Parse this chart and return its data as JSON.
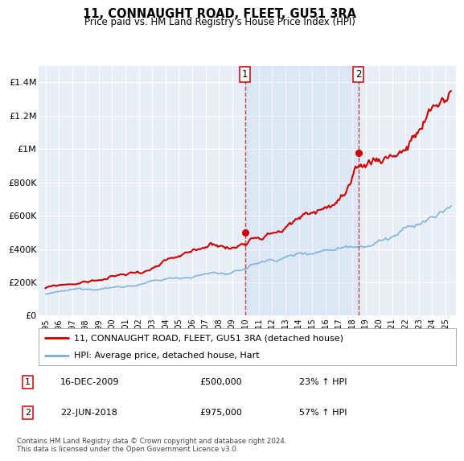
{
  "title": "11, CONNAUGHT ROAD, FLEET, GU51 3RA",
  "subtitle": "Price paid vs. HM Land Registry's House Price Index (HPI)",
  "background_color": "#ffffff",
  "plot_bg_color": "#e8eef8",
  "grid_color": "#ffffff",
  "hpi_color": "#7aaed6",
  "price_color": "#cc0000",
  "vline_color": "#cc0000",
  "ylim": [
    0,
    1500000
  ],
  "yticks": [
    0,
    200000,
    400000,
    600000,
    800000,
    1000000,
    1200000,
    1400000
  ],
  "ytick_labels": [
    "£0",
    "£200K",
    "£400K",
    "£600K",
    "£800K",
    "£1M",
    "£1.2M",
    "£1.4M"
  ],
  "sale1_year": 2009.96,
  "sale1_price": 500000,
  "sale1_label": "1",
  "sale2_year": 2018.47,
  "sale2_price": 975000,
  "sale2_label": "2",
  "legend_line1": "11, CONNAUGHT ROAD, FLEET, GU51 3RA (detached house)",
  "legend_line2": "HPI: Average price, detached house, Hart",
  "footnote": "Contains HM Land Registry data © Crown copyright and database right 2024.\nThis data is licensed under the Open Government Licence v3.0.",
  "xmin": 1994.5,
  "xmax": 2025.8
}
